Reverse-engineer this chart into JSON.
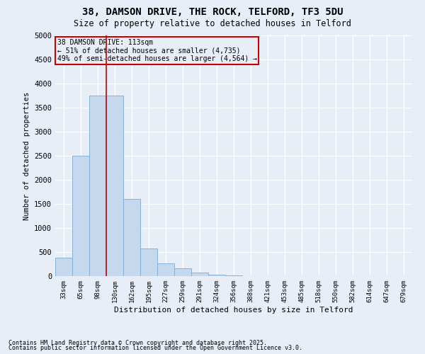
{
  "title_line1": "38, DAMSON DRIVE, THE ROCK, TELFORD, TF3 5DU",
  "title_line2": "Size of property relative to detached houses in Telford",
  "xlabel": "Distribution of detached houses by size in Telford",
  "ylabel": "Number of detached properties",
  "categories": [
    "33sqm",
    "65sqm",
    "98sqm",
    "130sqm",
    "162sqm",
    "195sqm",
    "227sqm",
    "259sqm",
    "291sqm",
    "324sqm",
    "356sqm",
    "388sqm",
    "421sqm",
    "453sqm",
    "485sqm",
    "518sqm",
    "550sqm",
    "582sqm",
    "614sqm",
    "647sqm",
    "679sqm"
  ],
  "values": [
    380,
    2500,
    3750,
    3750,
    1600,
    580,
    260,
    160,
    70,
    30,
    10,
    5,
    2,
    1,
    1,
    0,
    0,
    0,
    0,
    0,
    0
  ],
  "bar_color": "#c5d8ee",
  "bar_edge_color": "#7aaad0",
  "highlight_line_color": "#cc0000",
  "highlight_line_xindex": 2.5,
  "annotation_box_text": "38 DAMSON DRIVE: 113sqm\n← 51% of detached houses are smaller (4,735)\n49% of semi-detached houses are larger (4,564) →",
  "annotation_box_color": "#cc0000",
  "ylim": [
    0,
    5000
  ],
  "yticks": [
    0,
    500,
    1000,
    1500,
    2000,
    2500,
    3000,
    3500,
    4000,
    4500,
    5000
  ],
  "background_color": "#e8eef8",
  "grid_color": "#ffffff",
  "footer_line1": "Contains HM Land Registry data © Crown copyright and database right 2025.",
  "footer_line2": "Contains public sector information licensed under the Open Government Licence v3.0."
}
